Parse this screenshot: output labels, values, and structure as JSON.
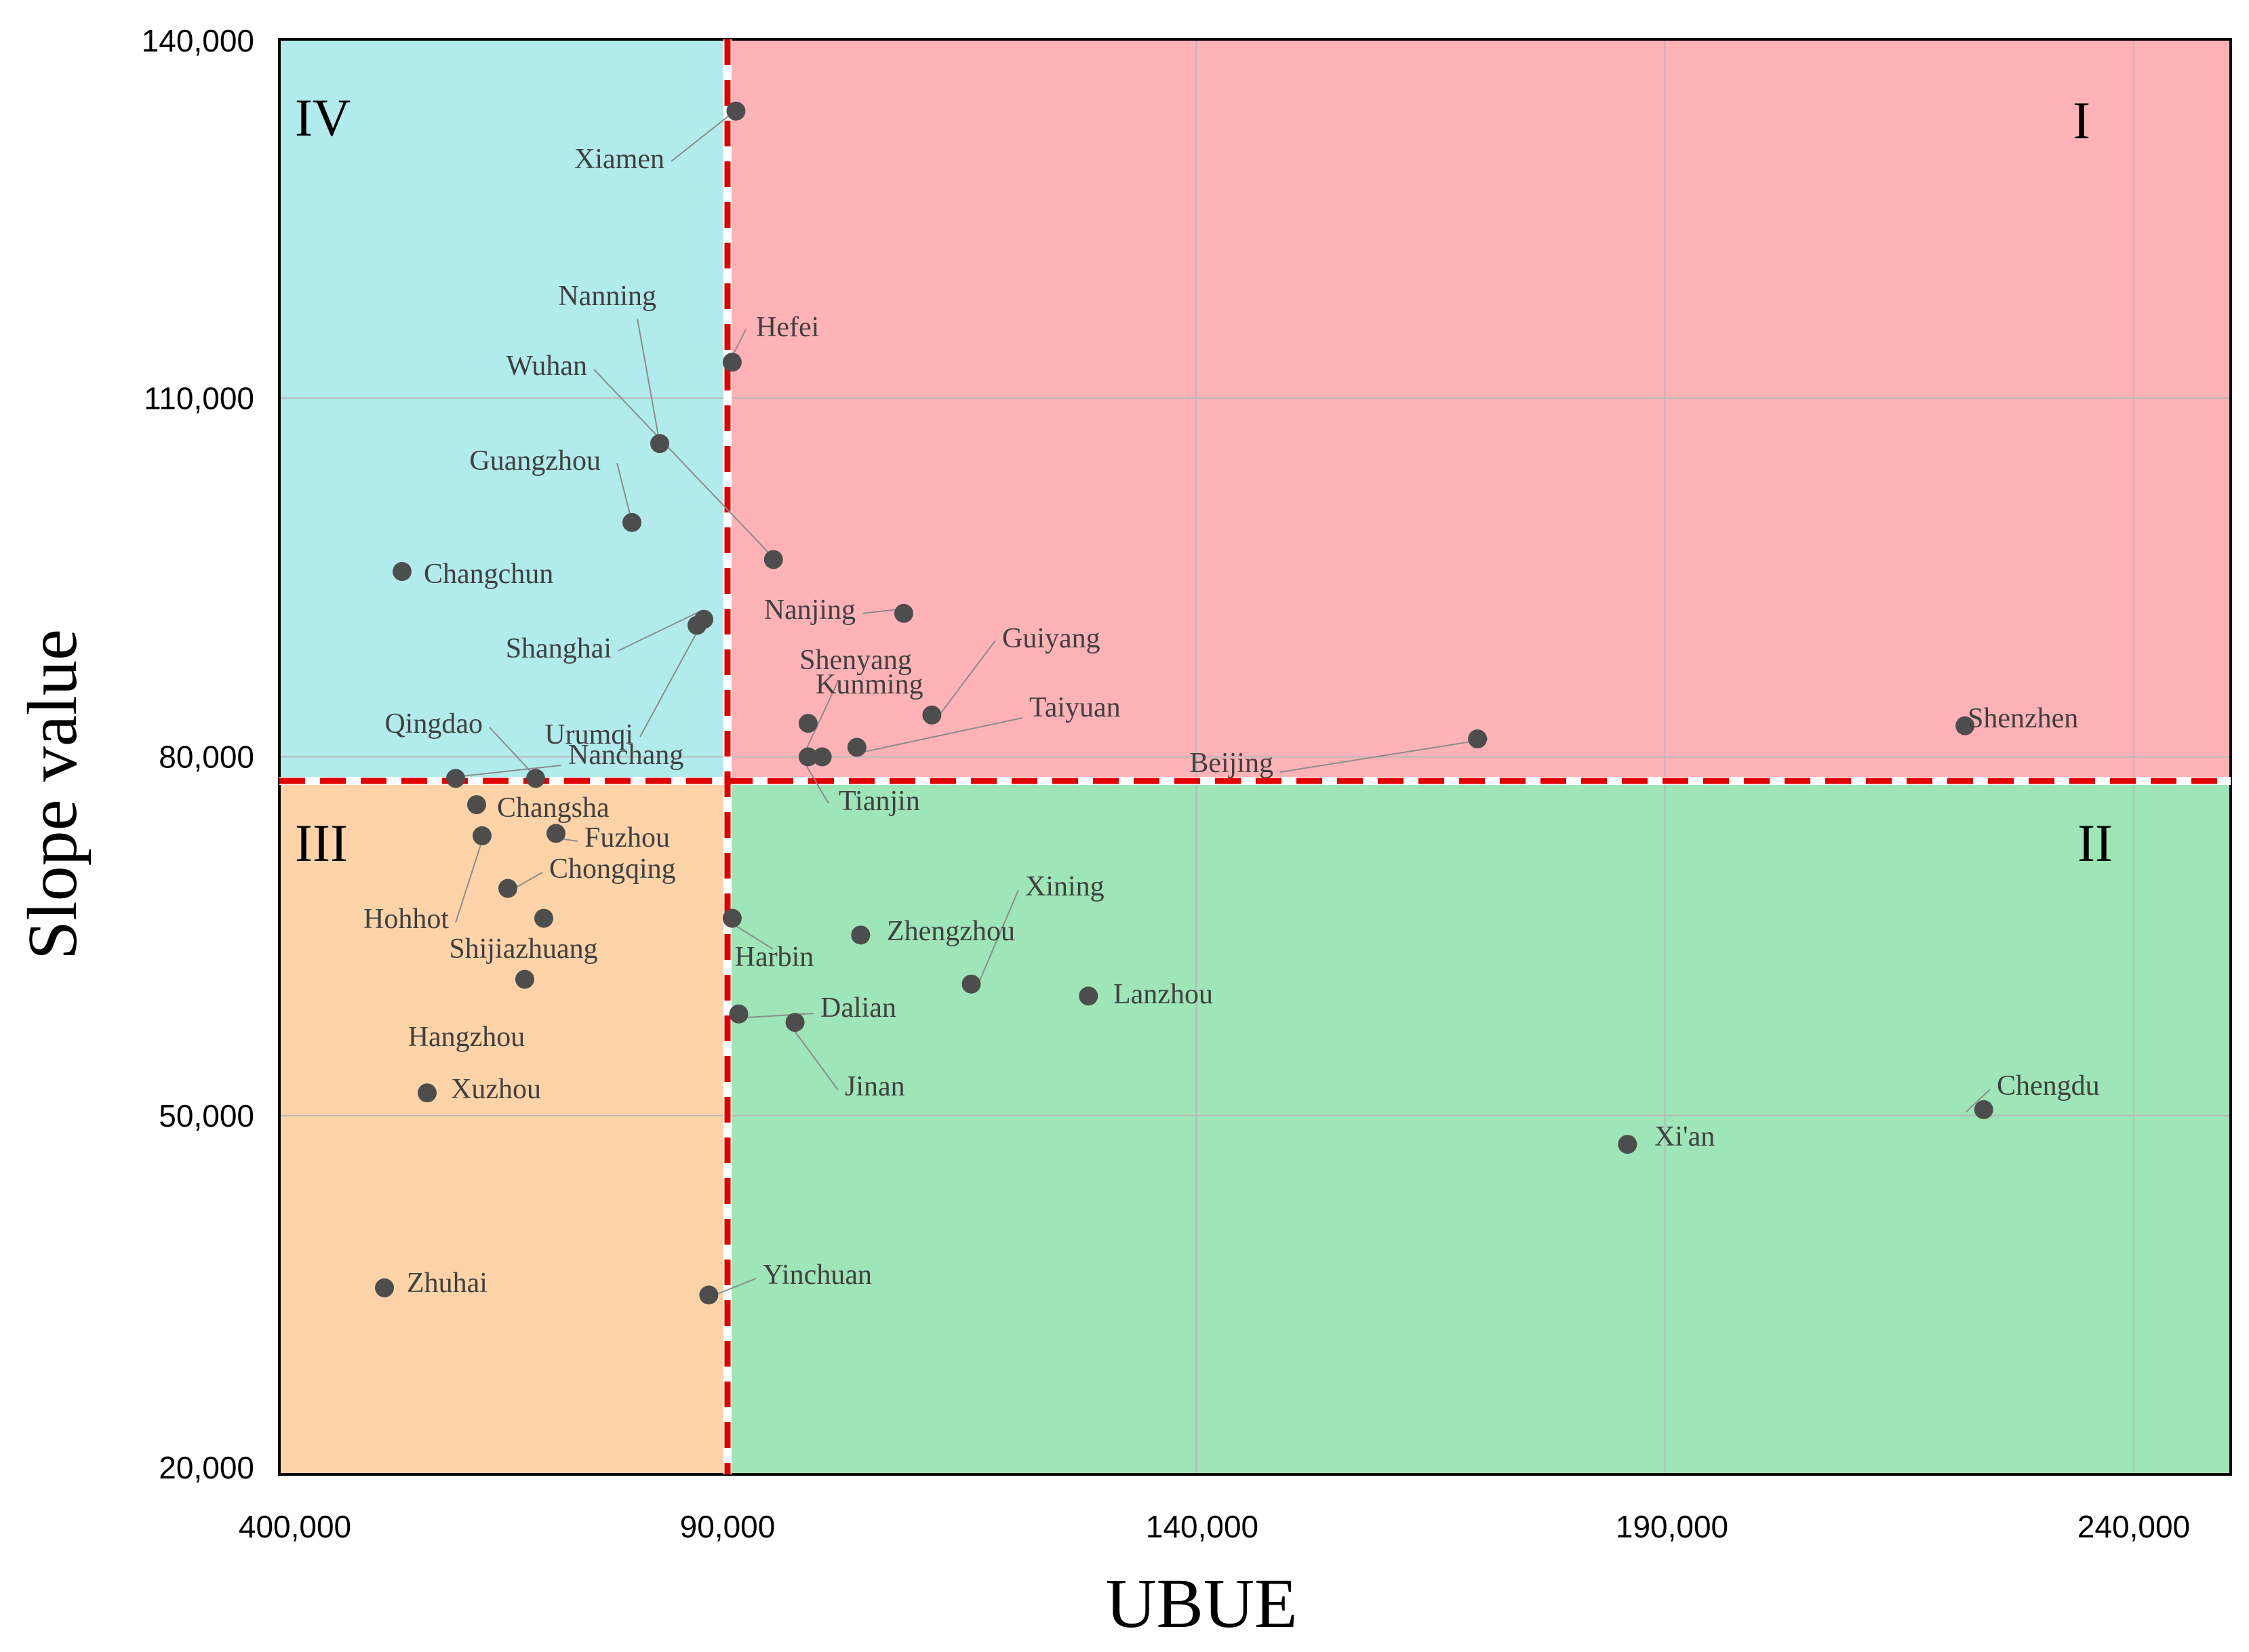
{
  "chart_data": {
    "type": "scatter",
    "xlabel": "UBUE",
    "ylabel": "Slope value",
    "x_ticks": [
      "400,000",
      "90,000",
      "140,000",
      "190,000",
      "240,000"
    ],
    "y_ticks": [
      "20,000",
      "50,000",
      "80,000",
      "110,000",
      "140,000"
    ],
    "ylim": [
      20000,
      140000
    ],
    "xlim_note": "x axis broken between 400,000 and 90,000",
    "grid": true,
    "thresholds": {
      "x": 90000,
      "y": 78000
    },
    "quadrants": [
      {
        "label": "I",
        "color": "#ffb3b6"
      },
      {
        "label": "II",
        "color": "#9ee5b7"
      },
      {
        "label": "III",
        "color": "#ffd3a8"
      },
      {
        "label": "IV",
        "color": "#b2ebeb"
      }
    ],
    "threshold_line_color": "#e00000",
    "point_color": "#4d4d4d",
    "points": [
      {
        "name": "Xiamen",
        "x": 90900,
        "y": 134000
      },
      {
        "name": "Hefei",
        "x": 90500,
        "y": 113000
      },
      {
        "name": "Nanning",
        "x": null,
        "y": 106200
      },
      {
        "name": "Wuhan",
        "x": 94900,
        "y": 96500
      },
      {
        "name": "Guangzhou",
        "x": null,
        "y": 99600
      },
      {
        "name": "Changchun",
        "x": null,
        "y": 95500
      },
      {
        "name": "Nanjing",
        "x": 108800,
        "y": 92000
      },
      {
        "name": "Shanghai",
        "x": null,
        "y": 91500
      },
      {
        "name": "Urumqi",
        "x": null,
        "y": 91000
      },
      {
        "name": "Guiyang",
        "x": 111800,
        "y": 83500
      },
      {
        "name": "Shenyang",
        "x": 98600,
        "y": 82800
      },
      {
        "name": "Kunming",
        "x": 103800,
        "y": 80800
      },
      {
        "name": "Tianjin",
        "x": 98600,
        "y": 80000
      },
      {
        "name": "Taiyuan",
        "x": 100100,
        "y": 80000
      },
      {
        "name": "Beijing",
        "x": 170000,
        "y": 81500
      },
      {
        "name": "Shenzhen",
        "x": 222000,
        "y": 82600
      },
      {
        "name": "Qingdao",
        "x": null,
        "y": 78200
      },
      {
        "name": "Nanchang",
        "x": null,
        "y": 78200
      },
      {
        "name": "Changsha",
        "x": null,
        "y": 76000
      },
      {
        "name": "Hohhot",
        "x": null,
        "y": 73400
      },
      {
        "name": "Fuzhou",
        "x": null,
        "y": 73600
      },
      {
        "name": "Chongqing",
        "x": null,
        "y": 69000
      },
      {
        "name": "Shijiazhuang",
        "x": null,
        "y": 66500
      },
      {
        "name": "Hangzhou",
        "x": null,
        "y": 61400
      },
      {
        "name": "Xuzhou",
        "x": null,
        "y": 51900
      },
      {
        "name": "Zhuhai",
        "x": null,
        "y": 35600
      },
      {
        "name": "Yinchuan",
        "x": 88000,
        "y": 35000
      },
      {
        "name": "Harbin",
        "x": 90500,
        "y": 66500
      },
      {
        "name": "Zhengzhou",
        "x": 104200,
        "y": 65100
      },
      {
        "name": "Xining",
        "x": 116000,
        "y": 61000
      },
      {
        "name": "Lanzhou",
        "x": 128500,
        "y": 60000
      },
      {
        "name": "Dalian",
        "x": 91200,
        "y": 58500
      },
      {
        "name": "Jinan",
        "x": 97200,
        "y": 57800
      },
      {
        "name": "Xi'an",
        "x": 186000,
        "y": 47600
      },
      {
        "name": "Chengdu",
        "x": 224000,
        "y": 50500
      }
    ]
  }
}
